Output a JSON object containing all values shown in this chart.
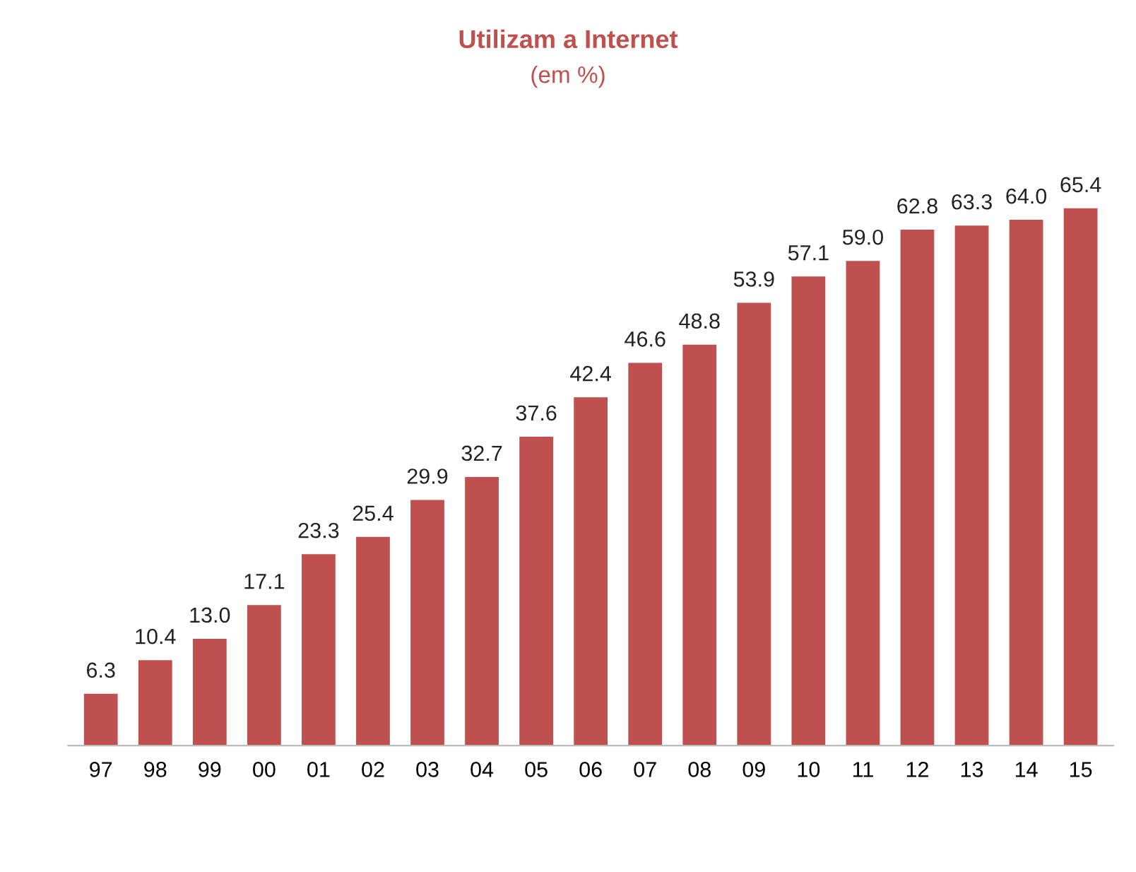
{
  "chart_data": {
    "type": "bar",
    "title": "Utilizam a Internet",
    "subtitle": "(em %)",
    "categories": [
      "97",
      "98",
      "99",
      "00",
      "01",
      "02",
      "03",
      "04",
      "05",
      "06",
      "07",
      "08",
      "09",
      "10",
      "11",
      "12",
      "13",
      "14",
      "15"
    ],
    "values": [
      6.3,
      10.4,
      13.0,
      17.1,
      23.3,
      25.4,
      29.9,
      32.7,
      37.6,
      42.4,
      46.6,
      48.8,
      53.9,
      57.1,
      59.0,
      62.8,
      63.3,
      64.0,
      65.4
    ],
    "value_labels": [
      "6.3",
      "10.4",
      "13.0",
      "17.1",
      "23.3",
      "25.4",
      "29.9",
      "32.7",
      "37.6",
      "42.4",
      "46.6",
      "48.8",
      "53.9",
      "57.1",
      "59.0",
      "62.8",
      "63.3",
      "64.0",
      "65.4"
    ],
    "color": "#c0504d",
    "grid": false,
    "legend": false
  }
}
